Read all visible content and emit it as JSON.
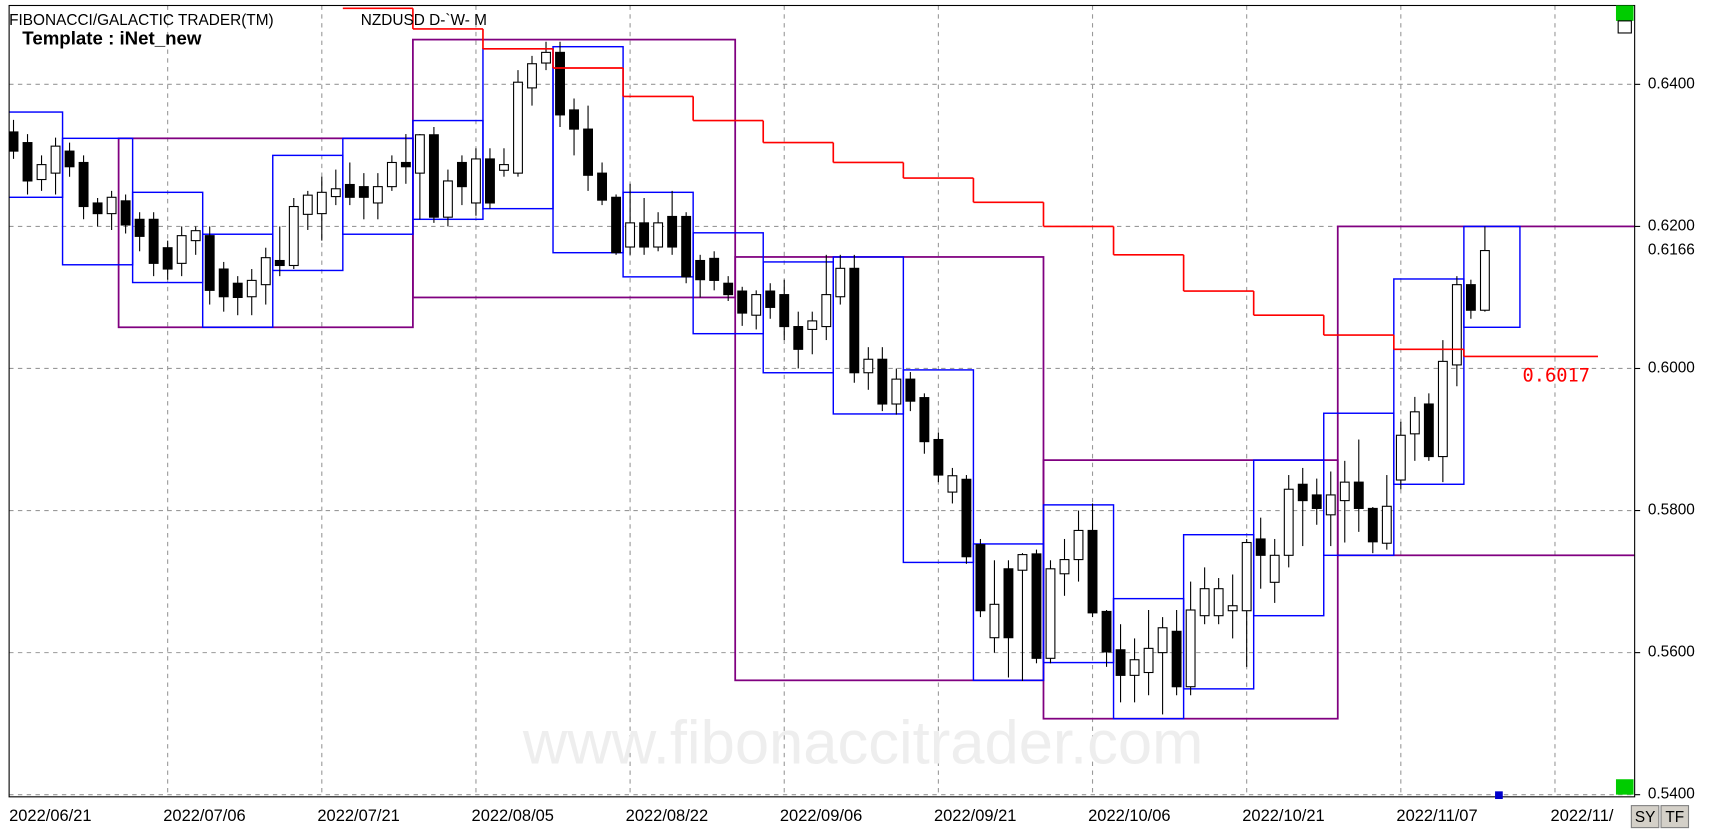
{
  "chart_data": {
    "type": "candlestick",
    "title": "FIBONACCI/GALACTIC TRADER(TM)",
    "symbol": "NZDUSD D-`W- M",
    "template": "Template : iNet_new",
    "watermark": "www.fibonaccitrader.com",
    "buttons": [
      "SY",
      "TF"
    ],
    "categories": [
      "2022/06/21",
      null,
      null,
      null,
      null,
      null,
      null,
      null,
      null,
      null,
      null,
      "2022/07/06",
      null,
      null,
      null,
      null,
      null,
      null,
      null,
      null,
      null,
      null,
      "2022/07/21",
      null,
      null,
      null,
      null,
      null,
      null,
      null,
      null,
      null,
      null,
      "2022/08/05",
      null,
      null,
      null,
      null,
      null,
      null,
      null,
      null,
      null,
      null,
      "2022/08/22",
      null,
      null,
      null,
      null,
      null,
      null,
      null,
      null,
      null,
      null,
      "2022/09/06",
      null,
      null,
      null,
      null,
      null,
      null,
      null,
      null,
      null,
      null,
      "2022/09/21",
      null,
      null,
      null,
      null,
      null,
      null,
      null,
      null,
      null,
      null,
      "2022/10/06",
      null,
      null,
      null,
      null,
      null,
      null,
      null,
      null,
      null,
      null,
      "2022/10/21",
      null,
      null,
      null,
      null,
      null,
      null,
      null,
      null,
      null,
      null,
      "2022/11/07",
      null,
      null,
      null,
      null,
      null,
      null,
      null,
      null,
      null,
      null,
      "2022/11/"
    ],
    "open": [
      0.6333,
      0.6318,
      0.6266,
      0.6275,
      0.6306,
      0.629,
      0.6233,
      0.6218,
      0.6236,
      0.621,
      0.621,
      0.617,
      0.6148,
      0.618,
      0.6187,
      0.614,
      0.612,
      0.6101,
      0.6118,
      0.6152,
      0.6145,
      0.6217,
      0.6218,
      0.6242,
      0.6259,
      0.6256,
      0.6233,
      0.6256,
      0.629,
      0.6275,
      0.6329,
      0.6213,
      0.629,
      0.6233,
      0.6295,
      0.6279,
      0.6275,
      0.6395,
      0.643,
      0.6445,
      0.6364,
      0.6337,
      0.6275,
      0.6241,
      0.6171,
      0.6205,
      0.6171,
      0.6214,
      0.6214,
      0.6152,
      0.6155,
      0.612,
      0.6109,
      0.6075,
      0.6109,
      0.6104,
      0.6059,
      0.6055,
      0.6059,
      0.6101,
      0.6141,
      0.5994,
      0.6013,
      0.595,
      0.5985,
      0.5959,
      0.59,
      0.5826,
      0.5844,
      0.5752,
      0.5621,
      0.5718,
      0.5716,
      0.5739,
      0.5592,
      0.5711,
      0.5731,
      0.5772,
      0.5658,
      0.5604,
      0.5568,
      0.5572,
      0.56,
      0.563,
      0.5552,
      0.5652,
      0.5652,
      0.5659,
      0.5659,
      0.576,
      0.5699,
      0.5737,
      0.5837,
      0.5822,
      0.5794,
      0.5814,
      0.584,
      0.5803,
      0.5754,
      0.5843,
      0.5908,
      0.595,
      0.5876,
      0.6005,
      0.6118,
      0.6082,
      null,
      null,
      null,
      null,
      null
    ],
    "high": [
      0.635,
      0.633,
      0.63,
      0.6325,
      0.6318,
      0.63,
      0.624,
      0.625,
      0.6245,
      0.622,
      0.622,
      0.618,
      0.62,
      0.62,
      0.62,
      0.615,
      0.613,
      0.614,
      0.617,
      0.62,
      0.624,
      0.625,
      0.627,
      0.628,
      0.629,
      0.6275,
      0.6275,
      0.63,
      0.633,
      0.633,
      0.634,
      0.628,
      0.63,
      0.631,
      0.631,
      0.631,
      0.642,
      0.644,
      0.646,
      0.646,
      0.638,
      0.637,
      0.629,
      0.6245,
      0.626,
      0.624,
      0.622,
      0.625,
      0.622,
      0.616,
      0.6165,
      0.613,
      0.6115,
      0.611,
      0.612,
      0.6125,
      0.608,
      0.608,
      0.616,
      0.616,
      0.616,
      0.603,
      0.603,
      0.6,
      0.5995,
      0.5965,
      0.591,
      0.586,
      0.585,
      0.576,
      0.573,
      0.573,
      0.574,
      0.5745,
      0.573,
      0.576,
      0.58,
      0.581,
      0.566,
      0.564,
      0.562,
      0.566,
      0.565,
      0.566,
      0.57,
      0.572,
      0.5705,
      0.571,
      0.576,
      0.579,
      0.576,
      0.585,
      0.586,
      0.5845,
      0.5855,
      0.587,
      0.59,
      0.5805,
      0.585,
      0.5925,
      0.596,
      0.5965,
      0.604,
      0.613,
      0.6125,
      0.62,
      null,
      null,
      null,
      null,
      null
    ],
    "low": [
      0.6295,
      0.6245,
      0.625,
      0.6245,
      0.627,
      0.621,
      0.62,
      0.6195,
      0.619,
      0.6165,
      0.613,
      0.6125,
      0.613,
      0.616,
      0.609,
      0.608,
      0.6075,
      0.6075,
      0.609,
      0.613,
      0.614,
      0.6195,
      0.618,
      0.623,
      0.623,
      0.621,
      0.621,
      0.625,
      0.626,
      0.621,
      0.6205,
      0.62,
      0.623,
      0.6215,
      0.6225,
      0.627,
      0.627,
      0.637,
      0.642,
      0.634,
      0.63,
      0.625,
      0.623,
      0.616,
      0.616,
      0.616,
      0.6165,
      0.616,
      0.612,
      0.61,
      0.611,
      0.6095,
      0.606,
      0.6055,
      0.607,
      0.604,
      0.6,
      0.602,
      0.604,
      0.609,
      0.598,
      0.597,
      0.594,
      0.5935,
      0.594,
      0.588,
      0.584,
      0.581,
      0.5725,
      0.565,
      0.56,
      0.5565,
      0.556,
      0.5585,
      0.5585,
      0.568,
      0.57,
      0.565,
      0.558,
      0.553,
      0.553,
      0.554,
      0.5513,
      0.554,
      0.554,
      0.564,
      0.564,
      0.562,
      0.558,
      0.569,
      0.567,
      0.572,
      0.575,
      0.578,
      0.575,
      0.5755,
      0.577,
      0.574,
      0.5745,
      0.583,
      0.587,
      0.587,
      0.584,
      0.5975,
      0.607,
      0.608,
      null,
      null,
      null,
      null,
      null
    ],
    "close": [
      0.6306,
      0.6264,
      0.6287,
      0.6313,
      0.6284,
      0.6228,
      0.6218,
      0.6241,
      0.6202,
      0.6186,
      0.6148,
      0.614,
      0.6187,
      0.6194,
      0.611,
      0.6101,
      0.61,
      0.6124,
      0.6156,
      0.6145,
      0.6228,
      0.6244,
      0.6248,
      0.6253,
      0.6241,
      0.6241,
      0.6256,
      0.629,
      0.6284,
      0.6329,
      0.6213,
      0.6264,
      0.6256,
      0.6295,
      0.6233,
      0.6287,
      0.6403,
      0.6429,
      0.6445,
      0.6357,
      0.6337,
      0.6272,
      0.6237,
      0.6163,
      0.6205,
      0.6171,
      0.6205,
      0.6171,
      0.6129,
      0.6125,
      0.6124,
      0.6104,
      0.6078,
      0.6104,
      0.6086,
      0.6059,
      0.6027,
      0.6067,
      0.6104,
      0.6141,
      0.5994,
      0.6013,
      0.595,
      0.5985,
      0.5954,
      0.5897,
      0.585,
      0.5849,
      0.5735,
      0.5659,
      0.5668,
      0.5621,
      0.5738,
      0.5592,
      0.5718,
      0.5731,
      0.5772,
      0.5656,
      0.5601,
      0.5568,
      0.559,
      0.5606,
      0.5635,
      0.5552,
      0.566,
      0.569,
      0.569,
      0.5666,
      0.5755,
      0.5737,
      0.5737,
      0.583,
      0.5814,
      0.5803,
      0.5822,
      0.584,
      0.5803,
      0.5756,
      0.5806,
      0.5906,
      0.5939,
      0.5876,
      0.601,
      0.6118,
      0.6082,
      0.6166,
      null,
      null,
      null,
      null,
      null
    ],
    "ylim": [
      0.5397,
      0.6511
    ],
    "yticks": [
      {
        "value": 0.54,
        "label": "0.5400"
      },
      {
        "value": 0.56,
        "label": "0.5600"
      },
      {
        "value": 0.58,
        "label": "0.5800"
      },
      {
        "value": 0.6,
        "label": "0.6000"
      },
      {
        "value": 0.62,
        "label": "0.6200"
      },
      {
        "value": 0.64,
        "label": "0.6400"
      }
    ],
    "last_price": {
      "value": 0.6166,
      "label": "0.6166"
    },
    "grid": true,
    "trail": {
      "color": "#ff0000",
      "values": [
        0.6507,
        0.6478,
        0.645,
        0.6423,
        0.6383,
        0.6349,
        0.6318,
        0.629,
        0.6268,
        0.6234,
        0.62,
        0.616,
        0.6109,
        0.6075,
        0.6047,
        0.6027,
        0.6017
      ],
      "label": "0.6017"
    },
    "weekly_boxes": {
      "color": "#0000ff",
      "boxes": [
        {
          "x0": -1.5,
          "x1": 3.5,
          "high": 0.6361,
          "low": 0.6241
        },
        {
          "x0": 3.5,
          "x1": 8.5,
          "high": 0.6324,
          "low": 0.6146
        },
        {
          "x0": 8.5,
          "x1": 13.5,
          "high": 0.6248,
          "low": 0.6121
        },
        {
          "x0": 13.5,
          "x1": 18.5,
          "high": 0.6189,
          "low": 0.6058
        },
        {
          "x0": 18.5,
          "x1": 23.5,
          "high": 0.63,
          "low": 0.6138
        },
        {
          "x0": 23.5,
          "x1": 28.5,
          "high": 0.6324,
          "low": 0.6189
        },
        {
          "x0": 28.5,
          "x1": 33.5,
          "high": 0.6349,
          "low": 0.621
        },
        {
          "x0": 33.5,
          "x1": 38.5,
          "high": 0.645,
          "low": 0.6225
        },
        {
          "x0": 38.5,
          "x1": 43.5,
          "high": 0.6453,
          "low": 0.6163
        },
        {
          "x0": 43.5,
          "x1": 48.5,
          "high": 0.6248,
          "low": 0.6129
        },
        {
          "x0": 48.5,
          "x1": 53.5,
          "high": 0.6191,
          "low": 0.6049
        },
        {
          "x0": 53.5,
          "x1": 58.5,
          "high": 0.615,
          "low": 0.5994
        },
        {
          "x0": 58.5,
          "x1": 63.5,
          "high": 0.6157,
          "low": 0.5936
        },
        {
          "x0": 63.5,
          "x1": 68.5,
          "high": 0.5998,
          "low": 0.5727
        },
        {
          "x0": 68.5,
          "x1": 73.5,
          "high": 0.5753,
          "low": 0.5561
        },
        {
          "x0": 73.5,
          "x1": 78.5,
          "high": 0.5808,
          "low": 0.5586
        },
        {
          "x0": 78.5,
          "x1": 83.5,
          "high": 0.5676,
          "low": 0.5507
        },
        {
          "x0": 83.5,
          "x1": 88.5,
          "high": 0.5766,
          "low": 0.5549
        },
        {
          "x0": 88.5,
          "x1": 93.5,
          "high": 0.5871,
          "low": 0.5652
        },
        {
          "x0": 93.5,
          "x1": 98.5,
          "high": 0.5937,
          "low": 0.5737
        },
        {
          "x0": 98.5,
          "x1": 103.5,
          "high": 0.6126,
          "low": 0.5837
        },
        {
          "x0": 103.5,
          "x1": 107.5,
          "high": 0.62,
          "low": 0.6058
        }
      ]
    },
    "monthly_boxes": {
      "color": "#800080",
      "boxes": [
        {
          "x0": 7.5,
          "x1": 28.5,
          "high": 0.6324,
          "low": 0.6058
        },
        {
          "x0": 28.5,
          "x1": 51.5,
          "high": 0.6463,
          "low": 0.61
        },
        {
          "x0": 51.5,
          "x1": 73.5,
          "high": 0.6157,
          "low": 0.5561
        },
        {
          "x0": 73.5,
          "x1": 94.5,
          "high": 0.5871,
          "low": 0.5507
        },
        {
          "x0": 94.5,
          "x1": 116,
          "high": 0.62,
          "low": 0.5737
        }
      ]
    }
  }
}
